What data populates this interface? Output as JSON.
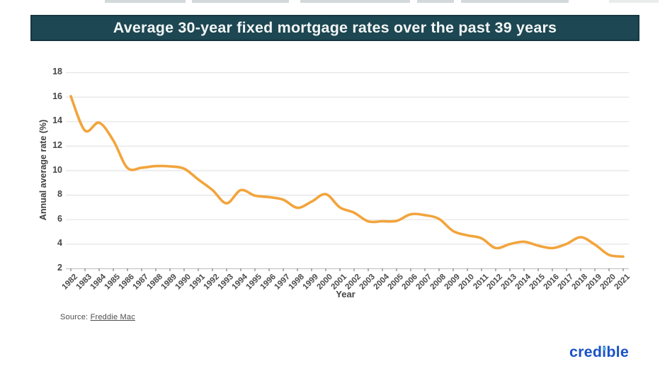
{
  "banner": {
    "title": "Average 30-year fixed mortgage rates over the past 39 years",
    "background": "#1D4752"
  },
  "chart_data": {
    "type": "line",
    "title": "Average 30-year fixed mortgage rates over the past 39 years",
    "xlabel": "Year",
    "ylabel": "Annual average rate (%)",
    "x": [
      1982,
      1983,
      1984,
      1985,
      1986,
      1987,
      1988,
      1989,
      1990,
      1991,
      1992,
      1993,
      1994,
      1995,
      1996,
      1997,
      1998,
      1999,
      2000,
      2001,
      2002,
      2003,
      2004,
      2005,
      2006,
      2007,
      2008,
      2009,
      2010,
      2011,
      2012,
      2013,
      2014,
      2015,
      2016,
      2017,
      2018,
      2019,
      2020,
      2021
    ],
    "series": [
      {
        "name": "Annual average 30-year fixed mortgage rate",
        "values": [
          16.04,
          13.24,
          13.88,
          12.43,
          10.19,
          10.21,
          10.34,
          10.32,
          10.13,
          9.25,
          8.39,
          7.31,
          8.38,
          7.93,
          7.81,
          7.6,
          6.94,
          7.44,
          8.05,
          6.97,
          6.54,
          5.83,
          5.84,
          5.87,
          6.41,
          6.34,
          6.03,
          5.04,
          4.69,
          4.45,
          3.66,
          3.98,
          4.17,
          3.85,
          3.65,
          3.99,
          4.54,
          3.94,
          3.1,
          2.96
        ]
      }
    ],
    "ylim": [
      2,
      18
    ],
    "yticks": [
      2,
      4,
      6,
      8,
      10,
      12,
      14,
      16,
      18
    ],
    "grid": true,
    "legend": "none",
    "line_color": "#F2A43C"
  },
  "footer": {
    "source_label": "Source:",
    "source_link": "Freddie Mac",
    "logo_text": "credible",
    "logo_color": "#1B52C6",
    "logo_dot_color": "#5FB0E5"
  }
}
